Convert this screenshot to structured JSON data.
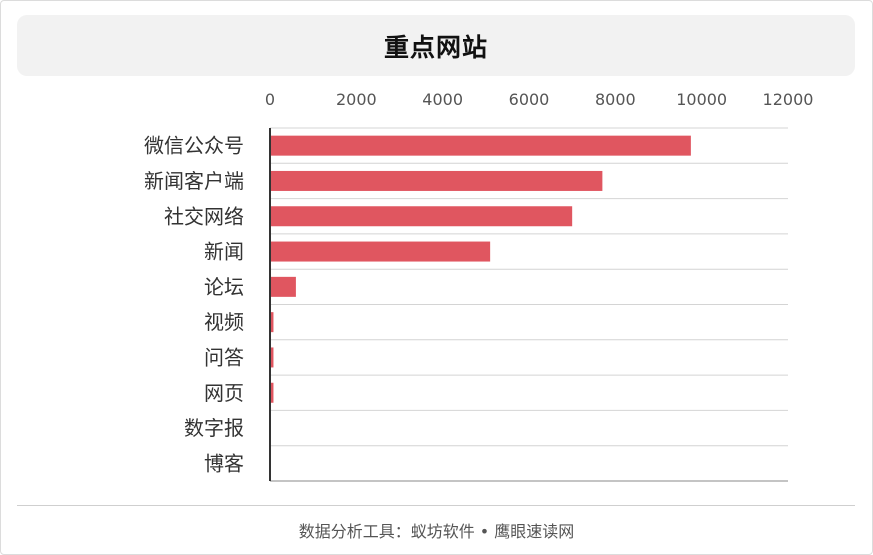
{
  "chart_data": {
    "type": "bar",
    "orientation": "horizontal",
    "title": "重点网站",
    "categories": [
      "微信公众号",
      "新闻客户端",
      "社交网络",
      "新闻",
      "论坛",
      "视频",
      "问答",
      "网页",
      "数字报",
      "博客"
    ],
    "values": [
      9750,
      7700,
      7000,
      5100,
      600,
      80,
      80,
      80,
      0,
      0
    ],
    "xlim": [
      0,
      12000
    ],
    "xticks": [
      0,
      2000,
      4000,
      6000,
      8000,
      10000,
      12000
    ],
    "x_axis_position": "top",
    "grid": "horizontal-row-separators",
    "legend": "none",
    "bar_color": "#e05660"
  },
  "footer": {
    "text": "数据分析工具：蚁坊软件 • 鹰眼速读网"
  }
}
